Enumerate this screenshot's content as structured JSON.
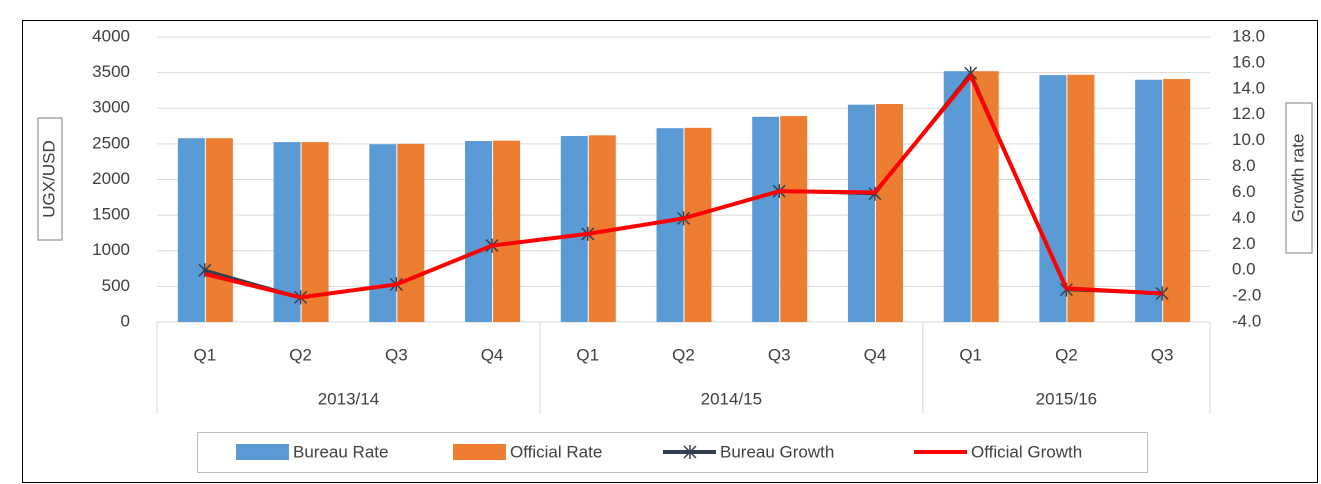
{
  "chart_data": {
    "type": "bar",
    "y_label": "UGX/USD",
    "y2_label": "Growth rate",
    "category_groups": [
      {
        "name": "2013/14",
        "categories": [
          "Q1",
          "Q2",
          "Q3",
          "Q4"
        ]
      },
      {
        "name": "2014/15",
        "categories": [
          "Q1",
          "Q2",
          "Q3",
          "Q4"
        ]
      },
      {
        "name": "2015/16",
        "categories": [
          "Q1",
          "Q2",
          "Q3"
        ]
      }
    ],
    "series": [
      {
        "name": "Bureau Rate",
        "type": "bar",
        "color": "#5b9bd5",
        "values": [
          2580,
          2525,
          2495,
          2540,
          2610,
          2720,
          2880,
          3050,
          3520,
          3465,
          3400
        ]
      },
      {
        "name": "Official Rate",
        "type": "bar",
        "color": "#ed7d31",
        "values": [
          2580,
          2525,
          2500,
          2545,
          2620,
          2725,
          2890,
          3060,
          3520,
          3470,
          3410
        ]
      },
      {
        "name": "Bureau Growth",
        "type": "line",
        "axis": "y2",
        "color": "#333f50",
        "values": [
          0.0,
          -2.1,
          -1.1,
          1.9,
          2.8,
          4.0,
          6.1,
          5.9,
          15.2,
          -1.5,
          -1.8
        ]
      },
      {
        "name": "Official Growth",
        "type": "line",
        "axis": "y2",
        "color": "#ff0000",
        "values": [
          -0.3,
          -2.1,
          -1.1,
          1.9,
          2.8,
          4.0,
          6.1,
          6.0,
          15.0,
          -1.4,
          -1.8
        ]
      }
    ],
    "ylim": [
      0,
      4000
    ],
    "yticks": [
      0,
      500,
      1000,
      1500,
      2000,
      2500,
      3000,
      3500,
      4000
    ],
    "y2lim": [
      -4,
      18
    ],
    "y2ticks": [
      {
        "value": -4,
        "label": "-4.0"
      },
      {
        "value": -2,
        "label": "-2.0"
      },
      {
        "value": 0,
        "label": "0.0"
      },
      {
        "value": 2,
        "label": "2.0"
      },
      {
        "value": 4,
        "label": "4.0"
      },
      {
        "value": 6,
        "label": "6.0"
      },
      {
        "value": 8,
        "label": "8.0"
      },
      {
        "value": 10,
        "label": "10.0"
      },
      {
        "value": 12,
        "label": "12.0"
      },
      {
        "value": 14,
        "label": "14.0"
      },
      {
        "value": 16,
        "label": "16.0"
      },
      {
        "value": 18,
        "label": "18.0"
      }
    ],
    "grid": true,
    "legend": "bottom"
  }
}
